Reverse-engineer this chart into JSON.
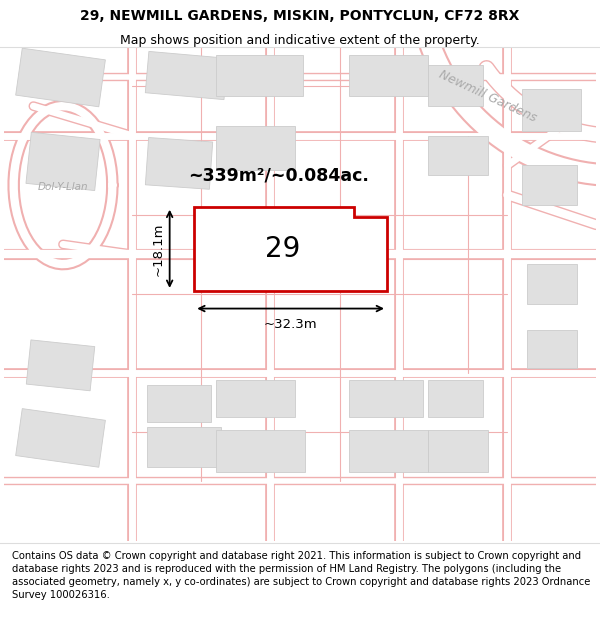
{
  "title_line1": "29, NEWMILL GARDENS, MISKIN, PONTYCLUN, CF72 8RX",
  "title_line2": "Map shows position and indicative extent of the property.",
  "footer_text": "Contains OS data © Crown copyright and database right 2021. This information is subject to Crown copyright and database rights 2023 and is reproduced with the permission of HM Land Registry. The polygons (including the associated geometry, namely x, y co-ordinates) are subject to Crown copyright and database rights 2023 Ordnance Survey 100026316.",
  "area_label": "~339m²/~0.084ac.",
  "plot_number": "29",
  "dim_width": "~32.3m",
  "dim_height": "~18.1m",
  "road_label": "Newmill Gardens",
  "street_label": "Dol-Y-Llan",
  "bg_color": "#ffffff",
  "plot_fill": "#ffffff",
  "plot_edge": "#cc0000",
  "building_fill": "#e0e0e0",
  "building_edge": "#cccccc",
  "road_outline_color": "#f0b0b0",
  "road_fill_color": "#ffffff",
  "title_fontsize": 10,
  "subtitle_fontsize": 9,
  "footer_fontsize": 7.2,
  "road_label_color": "#aaaaaa",
  "newmill_road_fill": "#e8e8e8"
}
